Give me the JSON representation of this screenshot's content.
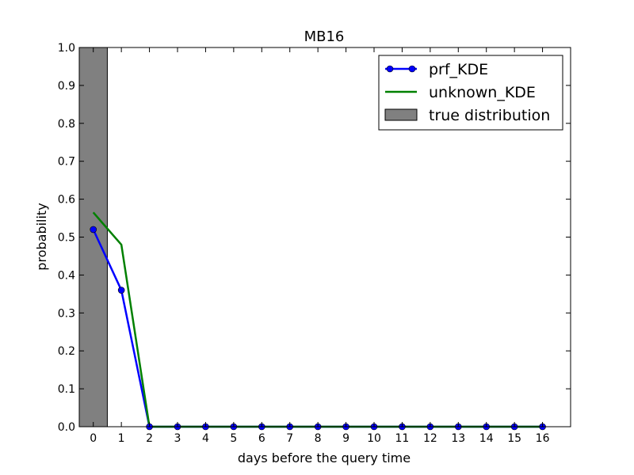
{
  "chart_data": {
    "type": "line",
    "title": "MB16",
    "xlabel": "days before the query time",
    "ylabel": "probability",
    "xlim": [
      -0.5,
      17
    ],
    "ylim": [
      0,
      1.0
    ],
    "x_ticks": [
      "0",
      "1",
      "2",
      "3",
      "4",
      "5",
      "6",
      "7",
      "8",
      "9",
      "10",
      "11",
      "12",
      "13",
      "14",
      "15",
      "16"
    ],
    "y_ticks": [
      "0.0",
      "0.1",
      "0.2",
      "0.3",
      "0.4",
      "0.5",
      "0.6",
      "0.7",
      "0.8",
      "0.9",
      "1.0"
    ],
    "grid": false,
    "legend_position": "top-right",
    "series": [
      {
        "name": "prf_KDE",
        "type": "line-marker",
        "color": "#0000ff",
        "x": [
          0,
          1,
          2,
          3,
          4,
          5,
          6,
          7,
          8,
          9,
          10,
          11,
          12,
          13,
          14,
          15,
          16
        ],
        "y": [
          0.52,
          0.36,
          0,
          0,
          0,
          0,
          0,
          0,
          0,
          0,
          0,
          0,
          0,
          0,
          0,
          0,
          0
        ]
      },
      {
        "name": "unknown_KDE",
        "type": "line",
        "color": "#008000",
        "x": [
          0,
          1,
          2,
          3,
          4,
          5,
          6,
          7,
          8,
          9,
          10,
          11,
          12,
          13,
          14,
          15,
          16
        ],
        "y": [
          0.565,
          0.48,
          0,
          0,
          0,
          0,
          0,
          0,
          0,
          0,
          0,
          0,
          0,
          0,
          0,
          0,
          0
        ]
      },
      {
        "name": "true distribution",
        "type": "bar",
        "color": "#808080",
        "x": [
          0
        ],
        "y": [
          1.0
        ],
        "bar_width": 1.0
      }
    ]
  }
}
